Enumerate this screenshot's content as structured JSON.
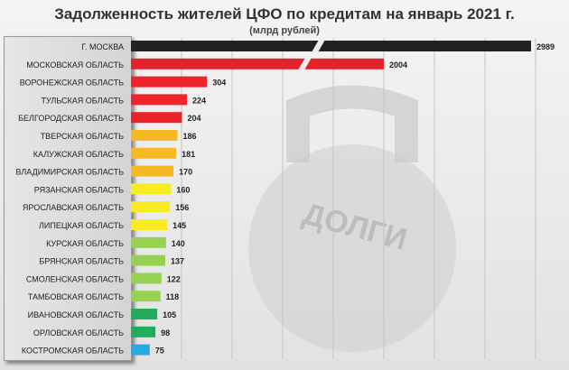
{
  "chart_data": {
    "type": "bar",
    "orientation": "horizontal",
    "title": "Задолженность жителей ЦФО по кредитам на январь 2021 г.",
    "subtitle": "(млрд рублей)",
    "axis_break": true,
    "grid": true,
    "categories": [
      "Г. МОСКВА",
      "МОСКОВСКАЯ ОБЛАСТЬ",
      "ВОРОНЕЖСКАЯ ОБЛАСТЬ",
      "ТУЛЬСКАЯ ОБЛАСТЬ",
      "БЕЛГОРОДСКАЯ ОБЛАСТЬ",
      "ТВЕРСКАЯ ОБЛАСТЬ",
      "КАЛУЖСКАЯ ОБЛАСТЬ",
      "ВЛАДИМИРСКАЯ ОБЛАСТЬ",
      "РЯЗАНСКАЯ ОБЛАСТЬ",
      "ЯРОСЛАВСКАЯ ОБЛАСТЬ",
      "ЛИПЕЦКАЯ ОБЛАСТЬ",
      "КУРСКАЯ ОБЛАСТЬ",
      "БРЯНСКАЯ ОБЛАСТЬ",
      "СМОЛЕНСКАЯ ОБЛАСТЬ",
      "ТАМБОВСКАЯ ОБЛАСТЬ",
      "ИВАНОВСКАЯ ОБЛАСТЬ",
      "ОРЛОВСКАЯ ОБЛАСТЬ",
      "КОСТРОМСКАЯ ОБЛАСТЬ"
    ],
    "values": [
      2989,
      2004,
      304,
      224,
      204,
      186,
      181,
      170,
      160,
      156,
      145,
      140,
      137,
      122,
      118,
      105,
      98,
      75
    ],
    "colors": [
      "#222222",
      "#e3222a",
      "#f0232a",
      "#f0232a",
      "#e8232a",
      "#f6b923",
      "#f6b923",
      "#f6b923",
      "#f7ec22",
      "#f7ec22",
      "#f7ec22",
      "#97d152",
      "#97d152",
      "#97d152",
      "#97d152",
      "#22ad5c",
      "#22ad5c",
      "#2ba8e2"
    ]
  },
  "watermark": "ДОЛГИ"
}
